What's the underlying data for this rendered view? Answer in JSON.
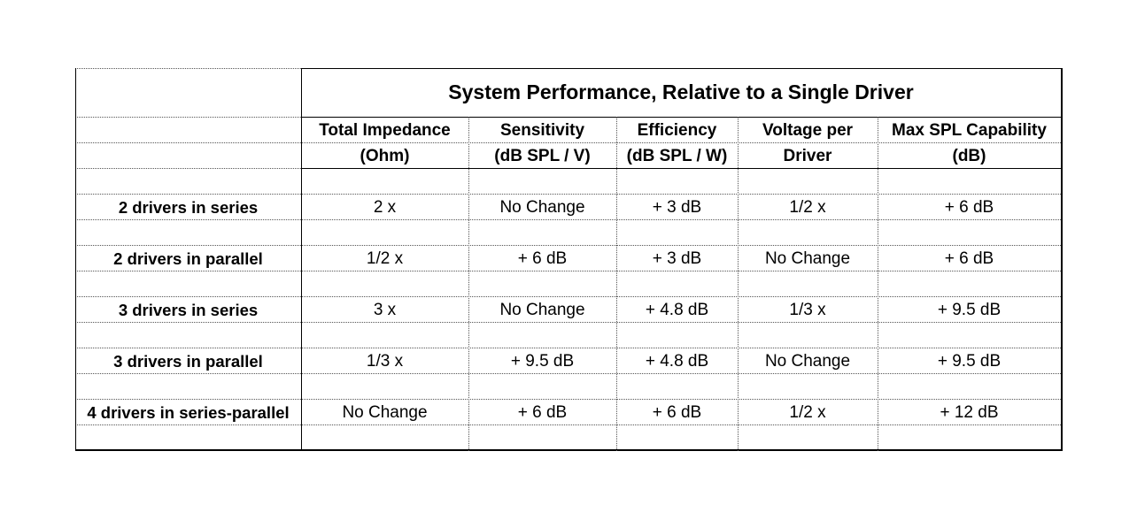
{
  "title": "System Performance, Relative to a Single Driver",
  "headers": [
    {
      "line1": "Total Impedance",
      "line2": "(Ohm)"
    },
    {
      "line1": "Sensitivity",
      "line2": "(dB SPL / V)"
    },
    {
      "line1": "Efficiency",
      "line2": "(dB SPL / W)"
    },
    {
      "line1": "Voltage per",
      "line2": "Driver"
    },
    {
      "line1": "Max SPL Capability",
      "line2": "(dB)"
    }
  ],
  "rows": [
    {
      "label": "2 drivers in series",
      "values": [
        "2 x",
        "No Change",
        "+ 3 dB",
        "1/2 x",
        "+ 6 dB"
      ]
    },
    {
      "label": "2 drivers in parallel",
      "values": [
        "1/2 x",
        "+ 6 dB",
        "+ 3 dB",
        "No Change",
        "+ 6 dB"
      ]
    },
    {
      "label": "3 drivers in series",
      "values": [
        "3 x",
        "No Change",
        "+ 4.8 dB",
        "1/3 x",
        "+ 9.5 dB"
      ]
    },
    {
      "label": "3 drivers in parallel",
      "values": [
        "1/3 x",
        "+ 9.5 dB",
        "+ 4.8 dB",
        "No Change",
        "+ 9.5 dB"
      ]
    },
    {
      "label": "4 drivers in series-parallel",
      "values": [
        "No Change",
        "+ 6 dB",
        "+ 6 dB",
        "1/2 x",
        "+ 12 dB"
      ]
    }
  ]
}
